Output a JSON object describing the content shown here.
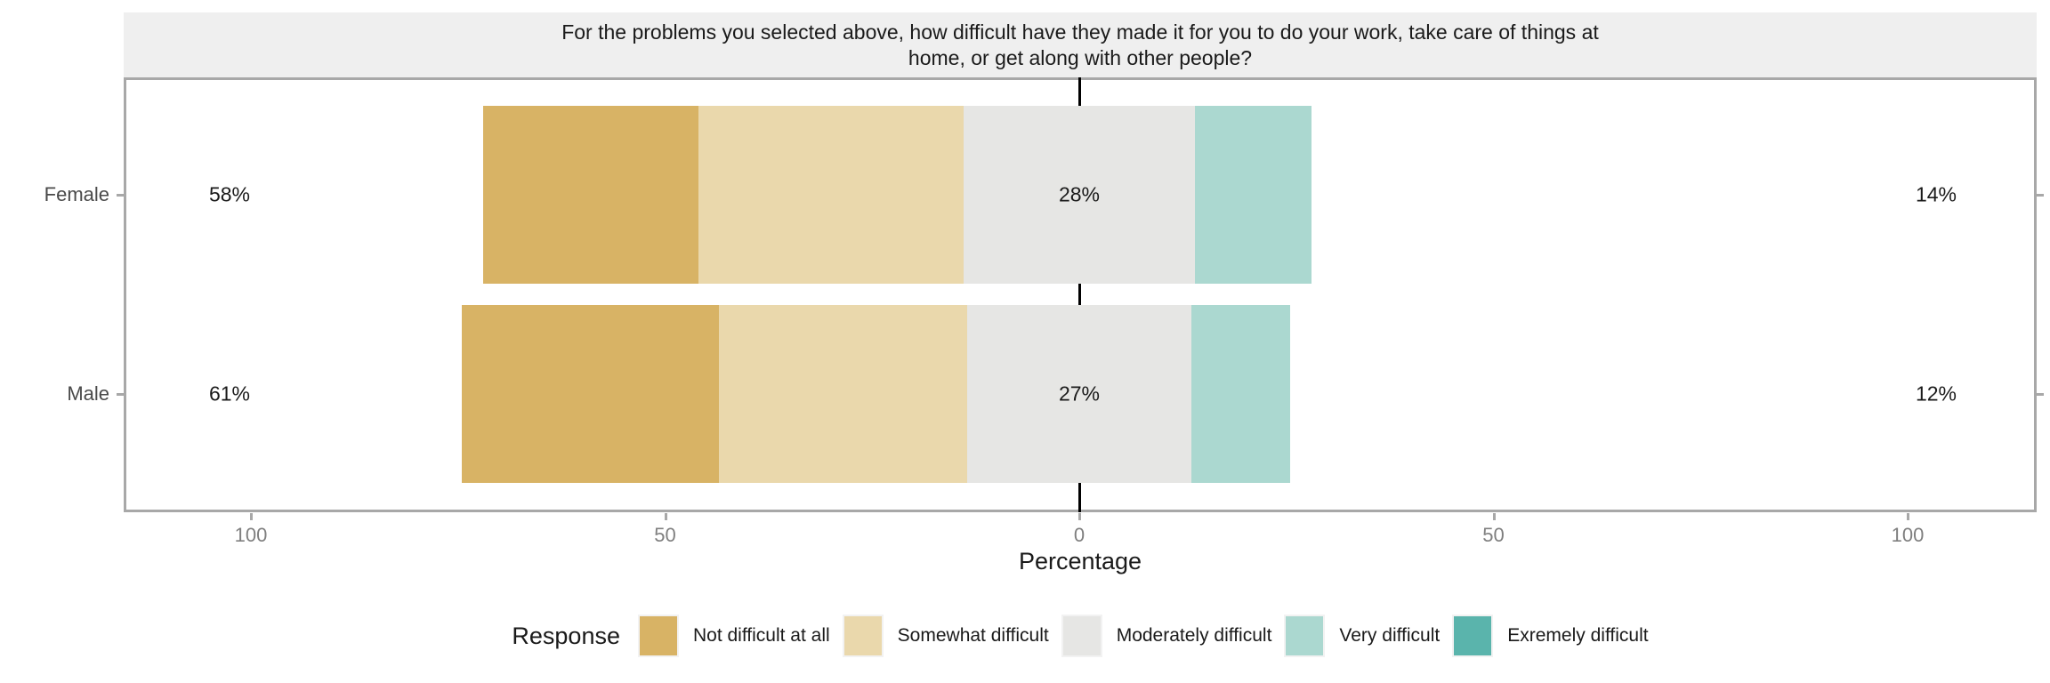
{
  "chart_data": {
    "type": "diverging_stacked_bar",
    "title": "For the problems you selected above, how difficult have they made it for you to do your work, take care of things at home, or get along with other people?",
    "xlabel": "Percentage",
    "x_ticks": {
      "values": [
        -100,
        -50,
        0,
        50,
        100
      ],
      "labels": [
        "100",
        "50",
        "0",
        "50",
        "100"
      ]
    },
    "axis_layout": "middle category straddles zero; grid off; legend bottom",
    "legend": {
      "title": "Response",
      "items": [
        {
          "label": "Not difficult at all",
          "color": "#d8b365"
        },
        {
          "label": "Somewhat difficult",
          "color": "#ead8ac"
        },
        {
          "label": "Moderately difficult",
          "color": "#e6e6e4"
        },
        {
          "label": "Very difficult",
          "color": "#abd8d0"
        },
        {
          "label": "Exremely difficult",
          "color": "#5ab4ac"
        }
      ]
    },
    "rows": [
      {
        "label": "Female",
        "values": [
          26,
          32,
          28,
          14,
          0
        ],
        "annotations": {
          "left": "58%",
          "center": "28%",
          "right": "14%"
        }
      },
      {
        "label": "Male",
        "values": [
          31,
          30,
          27,
          12,
          0
        ],
        "annotations": {
          "left": "61%",
          "center": "27%",
          "right": "12%"
        }
      }
    ],
    "colors": {
      "strip_bg": "#efefef",
      "panel_border": "#a8a8a8",
      "zero_line": "#000000",
      "tick_text": "#7f7f7f",
      "row_label_text": "#4a4a4a",
      "body_text": "#1a1a1a"
    }
  }
}
